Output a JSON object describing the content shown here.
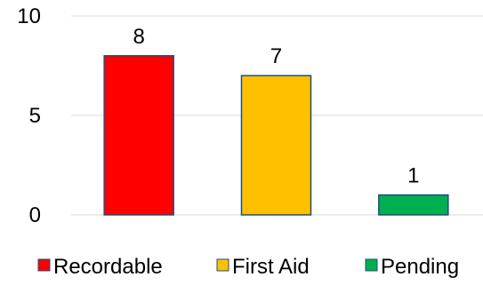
{
  "chart_data": {
    "type": "bar",
    "title": "",
    "xlabel": "",
    "ylabel": "",
    "categories": [
      "Recordable",
      "First Aid",
      "Pending"
    ],
    "values": [
      8,
      7,
      1
    ],
    "colors": [
      "#ff0000",
      "#ffc000",
      "#00b050"
    ],
    "ylim": [
      0,
      10
    ],
    "yticks": [
      0,
      5,
      10
    ],
    "grid": true,
    "data_labels": true,
    "legend": {
      "position": "bottom",
      "entries": [
        "Recordable",
        "First Aid",
        "Pending"
      ]
    }
  }
}
